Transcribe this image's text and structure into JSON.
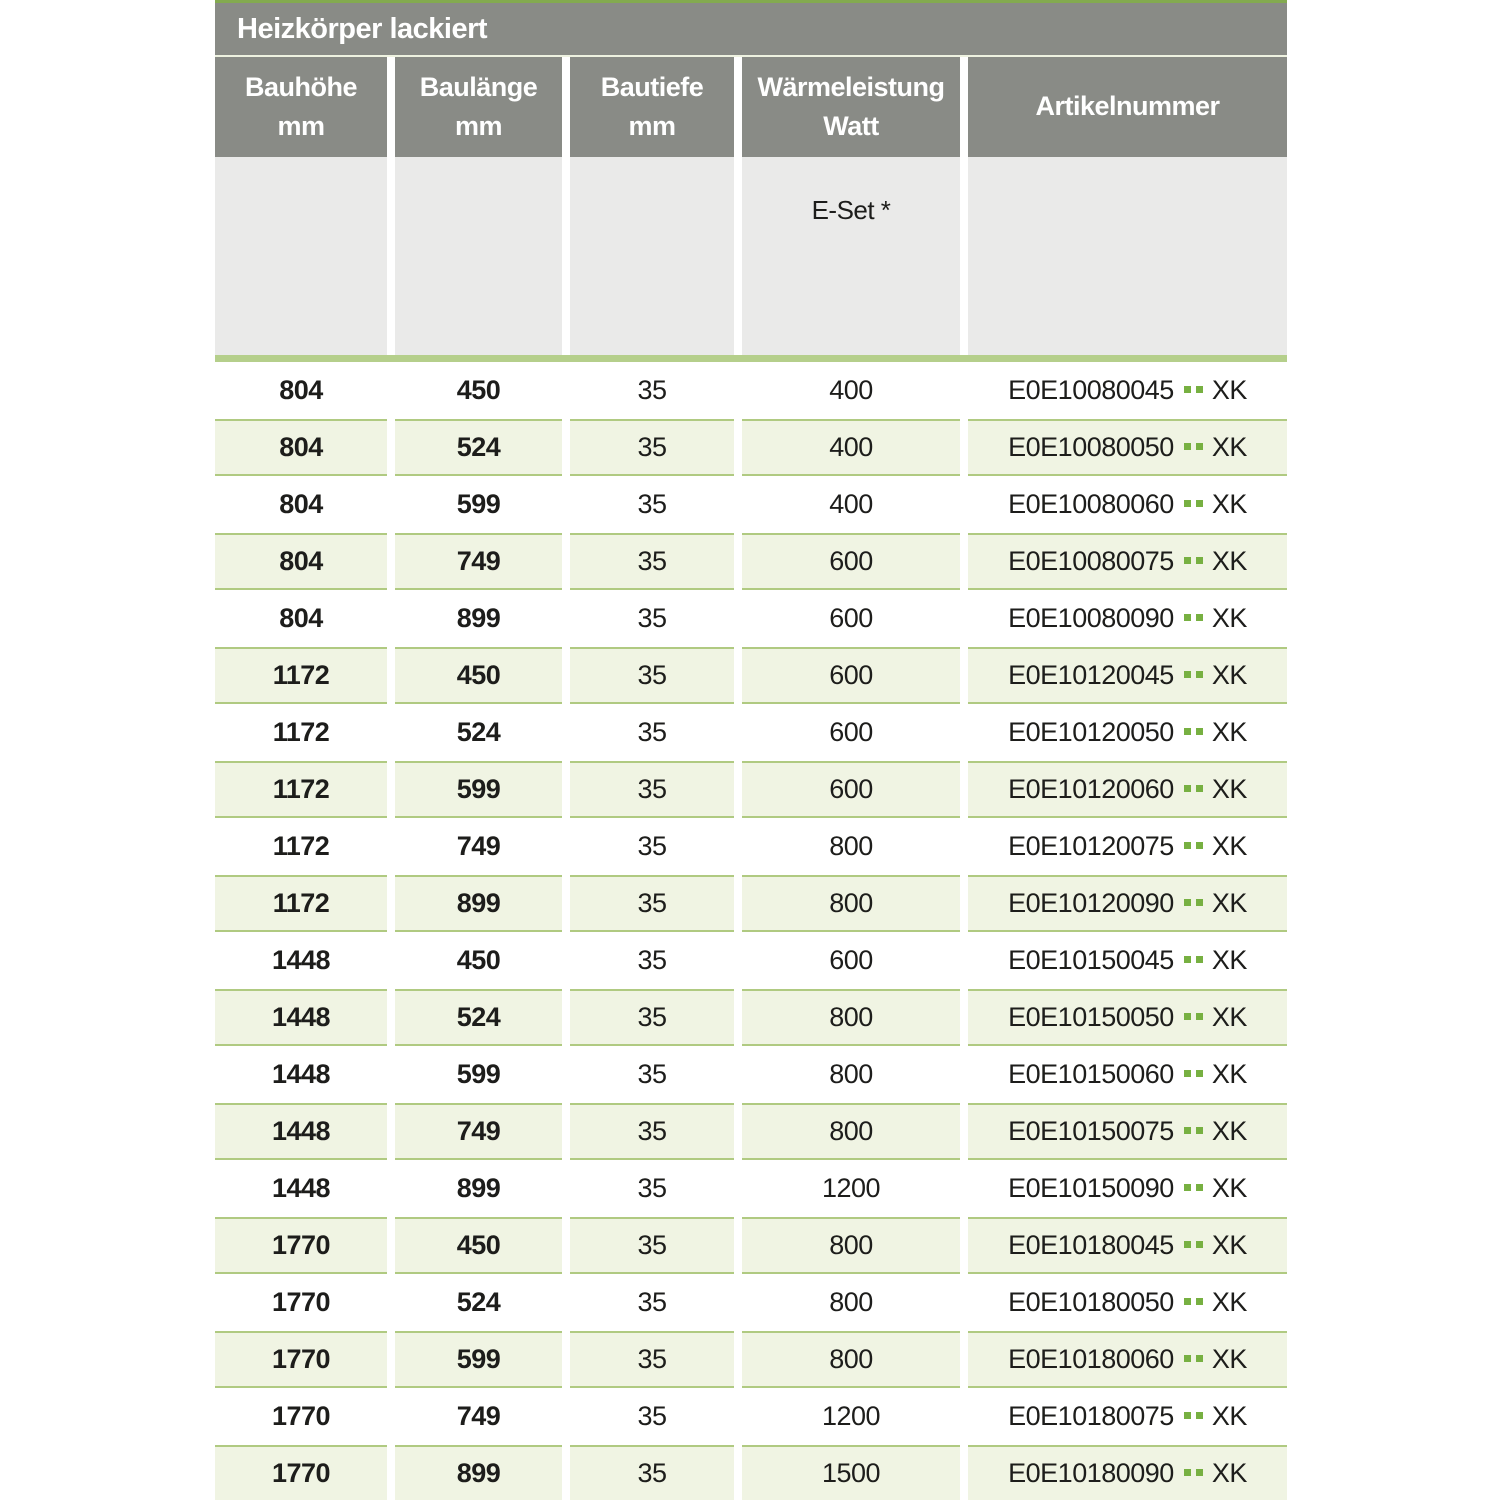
{
  "table": {
    "title": "Heizkörper lackiert",
    "columns": [
      {
        "line1": "Bauhöhe",
        "line2": "mm"
      },
      {
        "line1": "Baulänge",
        "line2": "mm"
      },
      {
        "line1": "Bautiefe",
        "line2": "mm"
      },
      {
        "line1": "Wärmeleistung",
        "line2": "Watt"
      },
      {
        "line1": "Artikelnummer",
        "line2": ""
      }
    ],
    "subheader": {
      "eset_label": "E-Set *"
    },
    "rows": [
      {
        "bauhoehe": "804",
        "baulaenge": "450",
        "bautiefe": "35",
        "watt": "400",
        "artikel_prefix": "E0E10080045",
        "artikel_suffix": "XK"
      },
      {
        "bauhoehe": "804",
        "baulaenge": "524",
        "bautiefe": "35",
        "watt": "400",
        "artikel_prefix": "E0E10080050",
        "artikel_suffix": "XK"
      },
      {
        "bauhoehe": "804",
        "baulaenge": "599",
        "bautiefe": "35",
        "watt": "400",
        "artikel_prefix": "E0E10080060",
        "artikel_suffix": "XK"
      },
      {
        "bauhoehe": "804",
        "baulaenge": "749",
        "bautiefe": "35",
        "watt": "600",
        "artikel_prefix": "E0E10080075",
        "artikel_suffix": "XK"
      },
      {
        "bauhoehe": "804",
        "baulaenge": "899",
        "bautiefe": "35",
        "watt": "600",
        "artikel_prefix": "E0E10080090",
        "artikel_suffix": "XK"
      },
      {
        "bauhoehe": "1172",
        "baulaenge": "450",
        "bautiefe": "35",
        "watt": "600",
        "artikel_prefix": "E0E10120045",
        "artikel_suffix": "XK"
      },
      {
        "bauhoehe": "1172",
        "baulaenge": "524",
        "bautiefe": "35",
        "watt": "600",
        "artikel_prefix": "E0E10120050",
        "artikel_suffix": "XK"
      },
      {
        "bauhoehe": "1172",
        "baulaenge": "599",
        "bautiefe": "35",
        "watt": "600",
        "artikel_prefix": "E0E10120060",
        "artikel_suffix": "XK"
      },
      {
        "bauhoehe": "1172",
        "baulaenge": "749",
        "bautiefe": "35",
        "watt": "800",
        "artikel_prefix": "E0E10120075",
        "artikel_suffix": "XK"
      },
      {
        "bauhoehe": "1172",
        "baulaenge": "899",
        "bautiefe": "35",
        "watt": "800",
        "artikel_prefix": "E0E10120090",
        "artikel_suffix": "XK"
      },
      {
        "bauhoehe": "1448",
        "baulaenge": "450",
        "bautiefe": "35",
        "watt": "600",
        "artikel_prefix": "E0E10150045",
        "artikel_suffix": "XK"
      },
      {
        "bauhoehe": "1448",
        "baulaenge": "524",
        "bautiefe": "35",
        "watt": "800",
        "artikel_prefix": "E0E10150050",
        "artikel_suffix": "XK"
      },
      {
        "bauhoehe": "1448",
        "baulaenge": "599",
        "bautiefe": "35",
        "watt": "800",
        "artikel_prefix": "E0E10150060",
        "artikel_suffix": "XK"
      },
      {
        "bauhoehe": "1448",
        "baulaenge": "749",
        "bautiefe": "35",
        "watt": "800",
        "artikel_prefix": "E0E10150075",
        "artikel_suffix": "XK"
      },
      {
        "bauhoehe": "1448",
        "baulaenge": "899",
        "bautiefe": "35",
        "watt": "1200",
        "artikel_prefix": "E0E10150090",
        "artikel_suffix": "XK"
      },
      {
        "bauhoehe": "1770",
        "baulaenge": "450",
        "bautiefe": "35",
        "watt": "800",
        "artikel_prefix": "E0E10180045",
        "artikel_suffix": "XK"
      },
      {
        "bauhoehe": "1770",
        "baulaenge": "524",
        "bautiefe": "35",
        "watt": "800",
        "artikel_prefix": "E0E10180050",
        "artikel_suffix": "XK"
      },
      {
        "bauhoehe": "1770",
        "baulaenge": "599",
        "bautiefe": "35",
        "watt": "800",
        "artikel_prefix": "E0E10180060",
        "artikel_suffix": "XK"
      },
      {
        "bauhoehe": "1770",
        "baulaenge": "749",
        "bautiefe": "35",
        "watt": "1200",
        "artikel_prefix": "E0E10180075",
        "artikel_suffix": "XK"
      },
      {
        "bauhoehe": "1770",
        "baulaenge": "899",
        "bautiefe": "35",
        "watt": "1500",
        "artikel_prefix": "E0E10180090",
        "artikel_suffix": "XK"
      }
    ]
  },
  "colors": {
    "header_gray": "#898b86",
    "top_line_green": "#83aa4f",
    "thick_separator_green": "#b5cf8b",
    "row_green_bg": "#f0f4e3",
    "row_green_border": "#b0ca81",
    "dot_green": "#77b041",
    "subheader_gray": "#eaeae9",
    "text": "#1d1d1b"
  }
}
